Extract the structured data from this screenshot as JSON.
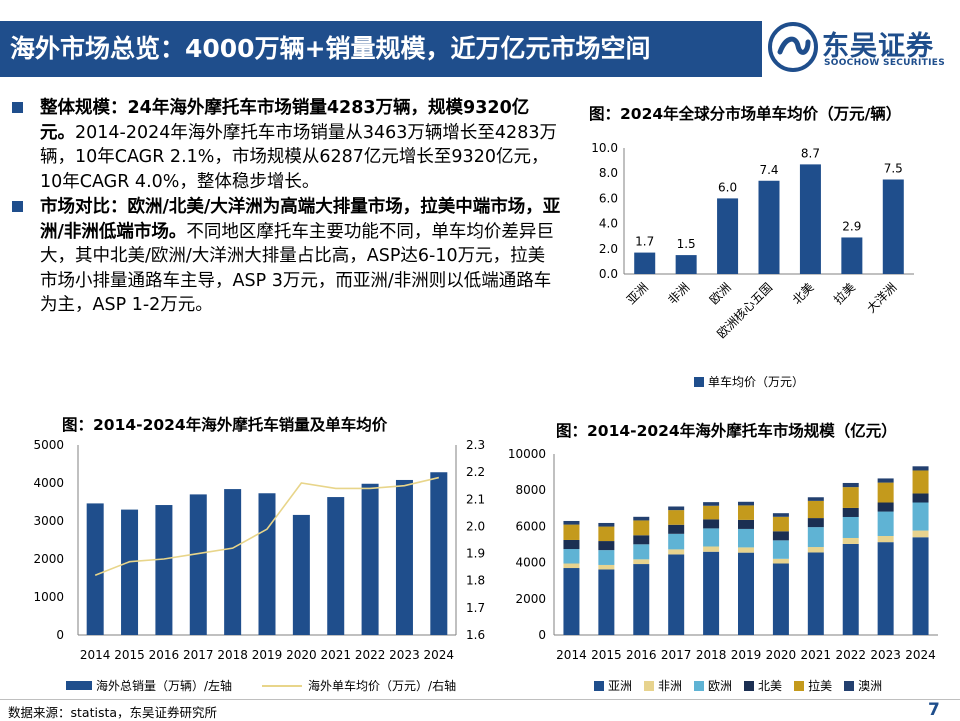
{
  "header": {
    "title": "海外市场总览：4000万辆+销量规模，近万亿元市场空间",
    "logo_cn": "东吴证券",
    "logo_en": "SOOCHOW SECURITIES"
  },
  "bullets": [
    {
      "bold": "整体规模：24年海外摩托车市场销量4283万辆，规模9320亿元。",
      "text": "2014-2024年海外摩托车市场销量从3463万辆增长至4283万辆，10年CAGR 2.1%，市场规模从6287亿元增长至9320亿元，10年CAGR 4.0%，整体稳步增长。"
    },
    {
      "bold": "市场对比：欧洲/北美/大洋洲为高端大排量市场，拉美中端市场，亚洲/非洲低端市场。",
      "text": "不同地区摩托车主要功能不同，单车均价差异巨大，其中北美/欧洲/大洋洲大排量占比高，ASP达6-10万元，拉美市场小排量通路车主导，ASP 3万元，而亚洲/非洲则以低端通路车为主，ASP 1-2万元。"
    }
  ],
  "chart_data": [
    {
      "type": "bar",
      "title": "图：2024年全球分市场单车均价（万元/辆）",
      "categories": [
        "亚洲",
        "非洲",
        "欧洲",
        "欧洲核心五国",
        "北美",
        "拉美",
        "大洋洲"
      ],
      "series": [
        {
          "name": "单车均价（万元）",
          "values": [
            1.7,
            1.5,
            6.0,
            7.4,
            8.7,
            2.9,
            7.5
          ]
        }
      ],
      "value_labels": [
        "1.7",
        "1.5",
        "6.0",
        "7.4",
        "8.7",
        "2.9",
        "7.5"
      ],
      "ylim": [
        0,
        10
      ],
      "yticks": [
        "0.0",
        "2.0",
        "4.0",
        "6.0",
        "8.0",
        "10.0"
      ],
      "color": "#1f4e8c"
    },
    {
      "type": "bar+line",
      "title": "图：2014-2024年海外摩托车销量及单车均价",
      "categories": [
        "2014",
        "2015",
        "2016",
        "2017",
        "2018",
        "2019",
        "2020",
        "2021",
        "2022",
        "2023",
        "2024"
      ],
      "series": [
        {
          "name": "海外总销量（万辆）/左轴",
          "type": "bar",
          "axis": "left",
          "values": [
            3463,
            3300,
            3420,
            3700,
            3840,
            3730,
            3160,
            3630,
            3980,
            4080,
            4283
          ]
        },
        {
          "name": "海外单车均价（万元）/右轴",
          "type": "line",
          "axis": "right",
          "values": [
            1.82,
            1.87,
            1.88,
            1.9,
            1.92,
            1.99,
            2.16,
            2.14,
            2.14,
            2.15,
            2.18
          ]
        }
      ],
      "ylim_left": [
        0,
        5000
      ],
      "yticks_left": [
        "0",
        "1000",
        "2000",
        "3000",
        "4000",
        "5000"
      ],
      "ylim_right": [
        1.6,
        2.3
      ],
      "yticks_right": [
        "1.6",
        "1.7",
        "1.8",
        "1.9",
        "2.0",
        "2.1",
        "2.2",
        "2.3"
      ],
      "bar_color": "#1f4e8c",
      "line_color": "#e8d58a"
    },
    {
      "type": "stacked_bar",
      "title": "图：2014-2024年海外摩托车市场规模（亿元）",
      "categories": [
        "2014",
        "2015",
        "2016",
        "2017",
        "2018",
        "2019",
        "2020",
        "2021",
        "2022",
        "2023",
        "2024"
      ],
      "series": [
        {
          "name": "亚洲",
          "color": "#1f4e8c",
          "values": [
            3700,
            3620,
            3920,
            4450,
            4600,
            4550,
            3950,
            4560,
            5030,
            5130,
            5400
          ]
        },
        {
          "name": "非洲",
          "color": "#e7d38e",
          "values": [
            250,
            250,
            260,
            280,
            290,
            290,
            260,
            300,
            330,
            340,
            370
          ]
        },
        {
          "name": "欧洲",
          "color": "#5fb3d4",
          "values": [
            800,
            820,
            830,
            860,
            1000,
            1020,
            1020,
            1100,
            1160,
            1350,
            1550
          ]
        },
        {
          "name": "北美",
          "color": "#1b2f52",
          "values": [
            500,
            500,
            500,
            500,
            500,
            500,
            500,
            500,
            500,
            500,
            500
          ]
        },
        {
          "name": "拉美",
          "color": "#c49a1c",
          "values": [
            850,
            800,
            820,
            810,
            750,
            800,
            800,
            950,
            1150,
            1100,
            1270
          ]
        },
        {
          "name": "澳洲",
          "color": "#23406f",
          "values": [
            200,
            200,
            200,
            200,
            200,
            200,
            200,
            200,
            230,
            230,
            230
          ]
        }
      ],
      "ylim": [
        0,
        10000
      ],
      "yticks": [
        "0",
        "2000",
        "4000",
        "6000",
        "8000",
        "10000"
      ]
    }
  ],
  "footer": {
    "source": "数据来源：statista，东吴证券研究所",
    "page": "7"
  }
}
